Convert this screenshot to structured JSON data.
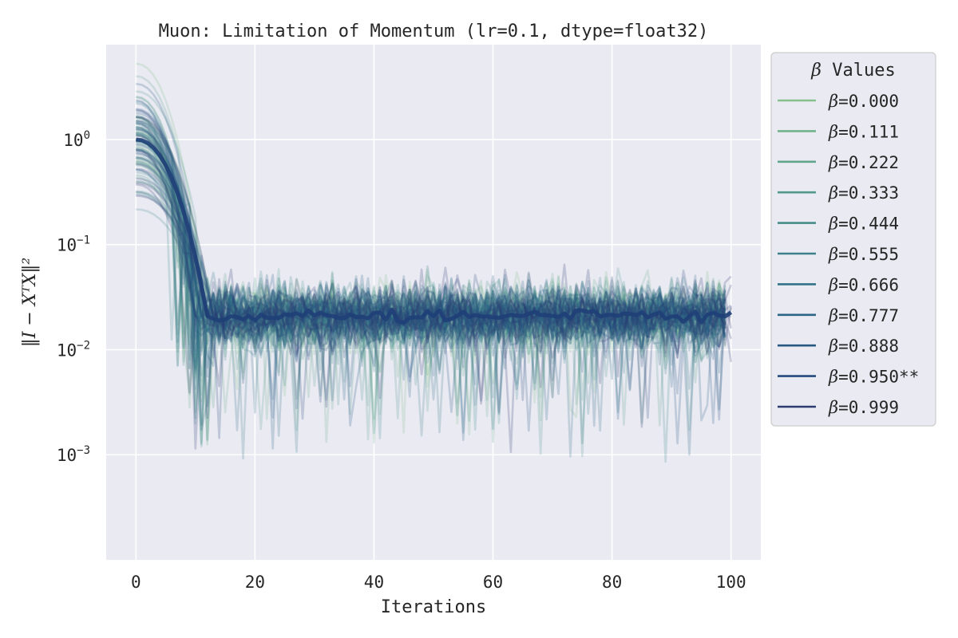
{
  "chart_data": {
    "type": "line",
    "title": "Muon: Limitation of Momentum (lr=0.1, dtype=float32)",
    "xlabel": "Iterations",
    "ylabel": "‖I − XᵀX‖²",
    "yscale": "log",
    "xlim": [
      -5,
      105
    ],
    "ylim": [
      0.0001,
      8
    ],
    "x_ticks": [
      0,
      20,
      40,
      60,
      80,
      100
    ],
    "y_ticks": [
      {
        "value": 1,
        "base": "10",
        "exp": "0"
      },
      {
        "value": 0.1,
        "base": "10",
        "exp": "−1"
      },
      {
        "value": 0.01,
        "base": "10",
        "exp": "−2"
      },
      {
        "value": 0.001,
        "base": "10",
        "exp": "−3"
      }
    ],
    "grid": true,
    "legend": {
      "title_symbol": "β",
      "title_text": " Values",
      "placement": "outside-right-top"
    },
    "x_range": [
      0,
      100
    ],
    "typical_start": 1.0,
    "converged_level": 0.021,
    "convergence_iteration": 12,
    "series": [
      {
        "name": "=0.000",
        "symbol": "β",
        "color": "#86c08a"
      },
      {
        "name": "=0.111",
        "symbol": "β",
        "color": "#72b38b"
      },
      {
        "name": "=0.222",
        "symbol": "β",
        "color": "#61a68c"
      },
      {
        "name": "=0.333",
        "symbol": "β",
        "color": "#52998c"
      },
      {
        "name": "=0.444",
        "symbol": "β",
        "color": "#468c8b"
      },
      {
        "name": "=0.555",
        "symbol": "β",
        "color": "#3b7f8a"
      },
      {
        "name": "=0.666",
        "symbol": "β",
        "color": "#327288"
      },
      {
        "name": "=0.777",
        "symbol": "β",
        "color": "#2a6586"
      },
      {
        "name": "=0.888",
        "symbol": "β",
        "color": "#255883"
      },
      {
        "name": "=0.950**",
        "symbol": "β",
        "color": "#234a7d"
      },
      {
        "name": "=0.999",
        "symbol": "β",
        "color": "#2c3b70"
      }
    ],
    "colors": {
      "plot_background": "#eaeaf2",
      "grid": "#ffffff",
      "text": "#262626",
      "legend_border": "#cccccc",
      "mean_line": "#1f3f78"
    }
  }
}
